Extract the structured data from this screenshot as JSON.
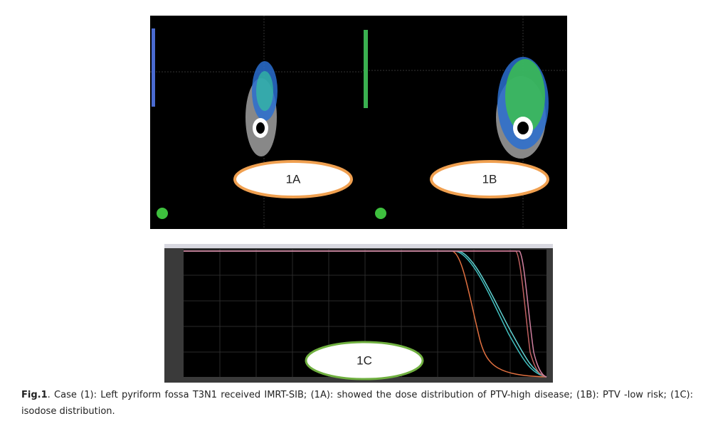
{
  "figure": {
    "panels": [
      {
        "label": "1A"
      },
      {
        "label": "1B"
      },
      {
        "label": "1C"
      }
    ],
    "caption": {
      "label": "Fig.1",
      "text": ". Case (1): Left pyriform fossa T3N1 received IMRT-SIB; (1A): showed the dose distribution of PTV-high disease; (1B): PTV -low risk; (1C): isodose distribution."
    }
  }
}
